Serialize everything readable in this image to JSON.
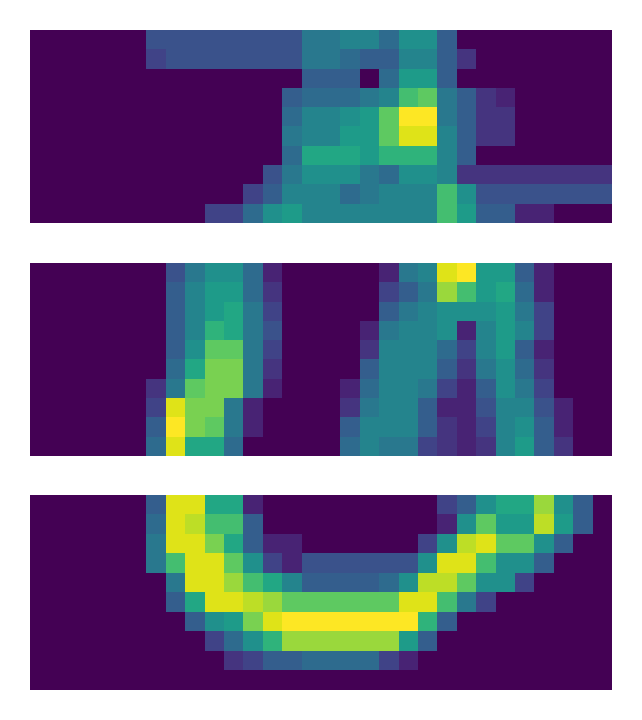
{
  "chart_data": [
    {
      "type": "heatmap",
      "color": "viridis",
      "color_range": [
        0,
        1
      ],
      "tick_labels": false,
      "cells": [
        [
          0,
          0,
          0,
          0,
          0,
          0,
          0.25,
          0.25,
          0.25,
          0.25,
          0.25,
          0.25,
          0.25,
          0.25,
          0.4,
          0.4,
          0.45,
          0.45,
          0.35,
          0.5,
          0.5,
          0.3,
          0,
          0,
          0,
          0,
          0,
          0,
          0,
          0
        ],
        [
          0,
          0,
          0,
          0,
          0,
          0,
          0.2,
          0.25,
          0.25,
          0.25,
          0.25,
          0.25,
          0.25,
          0.25,
          0.4,
          0.4,
          0.35,
          0.3,
          0.3,
          0.45,
          0.45,
          0.3,
          0.15,
          0,
          0,
          0,
          0,
          0,
          0,
          0
        ],
        [
          0,
          0,
          0,
          0,
          0,
          0,
          0,
          0,
          0,
          0,
          0,
          0,
          0,
          0,
          0.3,
          0.3,
          0.3,
          0,
          0.35,
          0.55,
          0.55,
          0.3,
          0,
          0,
          0,
          0,
          0,
          0,
          0,
          0
        ],
        [
          0,
          0,
          0,
          0,
          0,
          0,
          0,
          0,
          0,
          0,
          0,
          0,
          0,
          0.3,
          0.35,
          0.35,
          0.35,
          0.4,
          0.45,
          0.7,
          0.75,
          0.4,
          0.3,
          0.15,
          0.1,
          0,
          0,
          0,
          0,
          0
        ],
        [
          0,
          0,
          0,
          0,
          0,
          0,
          0,
          0,
          0,
          0,
          0,
          0,
          0,
          0.35,
          0.45,
          0.45,
          0.5,
          0.55,
          0.75,
          1,
          1,
          0.4,
          0.3,
          0.15,
          0.15,
          0,
          0,
          0,
          0,
          0
        ],
        [
          0,
          0,
          0,
          0,
          0,
          0,
          0,
          0,
          0,
          0,
          0,
          0,
          0,
          0.4,
          0.45,
          0.45,
          0.55,
          0.55,
          0.75,
          0.95,
          0.95,
          0.45,
          0.3,
          0.15,
          0.15,
          0,
          0,
          0,
          0,
          0
        ],
        [
          0,
          0,
          0,
          0,
          0,
          0,
          0,
          0,
          0,
          0,
          0,
          0,
          0,
          0.35,
          0.6,
          0.6,
          0.6,
          0.55,
          0.65,
          0.65,
          0.65,
          0.45,
          0.3,
          0,
          0,
          0,
          0,
          0,
          0,
          0
        ],
        [
          0,
          0,
          0,
          0,
          0,
          0,
          0,
          0,
          0,
          0,
          0,
          0,
          0.25,
          0.4,
          0.5,
          0.5,
          0.5,
          0.4,
          0.35,
          0.5,
          0.5,
          0.45,
          0.15,
          0.15,
          0.15,
          0.15,
          0.15,
          0.15,
          0.15,
          0.15
        ],
        [
          0,
          0,
          0,
          0,
          0,
          0,
          0,
          0,
          0,
          0,
          0,
          0.2,
          0.3,
          0.45,
          0.45,
          0.45,
          0.35,
          0.4,
          0.45,
          0.45,
          0.45,
          0.7,
          0.5,
          0.25,
          0.25,
          0.25,
          0.25,
          0.25,
          0.25,
          0.25
        ],
        [
          0,
          0,
          0,
          0,
          0,
          0,
          0,
          0,
          0,
          0.2,
          0.2,
          0.35,
          0.5,
          0.55,
          0.45,
          0.45,
          0.45,
          0.45,
          0.45,
          0.45,
          0.45,
          0.7,
          0.55,
          0.3,
          0.3,
          0.1,
          0.1,
          0,
          0,
          0
        ]
      ]
    },
    {
      "type": "heatmap",
      "color": "viridis",
      "color_range": [
        0,
        1
      ],
      "tick_labels": false,
      "cells": [
        [
          0,
          0,
          0,
          0,
          0,
          0,
          0,
          0.25,
          0.4,
          0.5,
          0.5,
          0.35,
          0.1,
          0,
          0,
          0,
          0,
          0,
          0.1,
          0.4,
          0.45,
          0.95,
          1,
          0.55,
          0.55,
          0.3,
          0.1,
          0,
          0,
          0
        ],
        [
          0,
          0,
          0,
          0,
          0,
          0,
          0,
          0.3,
          0.45,
          0.55,
          0.55,
          0.35,
          0.15,
          0,
          0,
          0,
          0,
          0,
          0.2,
          0.3,
          0.4,
          0.85,
          0.7,
          0.55,
          0.6,
          0.35,
          0.1,
          0,
          0,
          0
        ],
        [
          0,
          0,
          0,
          0,
          0,
          0,
          0,
          0.3,
          0.45,
          0.55,
          0.6,
          0.4,
          0.2,
          0,
          0,
          0,
          0,
          0,
          0.3,
          0.4,
          0.45,
          0.5,
          0.5,
          0.5,
          0.55,
          0.4,
          0.2,
          0,
          0,
          0
        ],
        [
          0,
          0,
          0,
          0,
          0,
          0,
          0,
          0.3,
          0.45,
          0.65,
          0.6,
          0.4,
          0.25,
          0,
          0,
          0,
          0,
          0.1,
          0.4,
          0.45,
          0.45,
          0.5,
          0.1,
          0.45,
          0.55,
          0.45,
          0.2,
          0,
          0,
          0
        ],
        [
          0,
          0,
          0,
          0,
          0,
          0,
          0,
          0.3,
          0.5,
          0.75,
          0.75,
          0.4,
          0.2,
          0,
          0,
          0,
          0,
          0.15,
          0.45,
          0.45,
          0.45,
          0.35,
          0.2,
          0.45,
          0.55,
          0.3,
          0.1,
          0,
          0,
          0
        ],
        [
          0,
          0,
          0,
          0,
          0,
          0,
          0,
          0.35,
          0.6,
          0.8,
          0.8,
          0.4,
          0.15,
          0,
          0,
          0,
          0,
          0.3,
          0.45,
          0.45,
          0.45,
          0.3,
          0.15,
          0.4,
          0.5,
          0.35,
          0.15,
          0,
          0,
          0
        ],
        [
          0,
          0,
          0,
          0,
          0,
          0,
          0.15,
          0.4,
          0.75,
          0.8,
          0.8,
          0.4,
          0.1,
          0,
          0,
          0,
          0.1,
          0.35,
          0.45,
          0.45,
          0.4,
          0.2,
          0.1,
          0.3,
          0.5,
          0.4,
          0.2,
          0,
          0,
          0
        ],
        [
          0,
          0,
          0,
          0,
          0,
          0,
          0.2,
          0.95,
          0.8,
          0.8,
          0.4,
          0.1,
          0,
          0,
          0,
          0,
          0.15,
          0.4,
          0.45,
          0.45,
          0.3,
          0.1,
          0.1,
          0.25,
          0.45,
          0.45,
          0.25,
          0.1,
          0,
          0
        ],
        [
          0,
          0,
          0,
          0,
          0,
          0,
          0.3,
          1,
          0.8,
          0.75,
          0.4,
          0.1,
          0,
          0,
          0,
          0,
          0.3,
          0.45,
          0.45,
          0.45,
          0.3,
          0.15,
          0.1,
          0.2,
          0.45,
          0.5,
          0.3,
          0.1,
          0,
          0
        ],
        [
          0,
          0,
          0,
          0,
          0,
          0,
          0.35,
          0.95,
          0.6,
          0.6,
          0.35,
          0,
          0,
          0,
          0,
          0,
          0.35,
          0.45,
          0.4,
          0.4,
          0.2,
          0.15,
          0.1,
          0.15,
          0.45,
          0.55,
          0.3,
          0.15,
          0,
          0
        ]
      ]
    },
    {
      "type": "heatmap",
      "color": "viridis",
      "color_range": [
        0,
        1
      ],
      "tick_labels": false,
      "cells": [
        [
          0,
          0,
          0,
          0,
          0,
          0,
          0.3,
          0.95,
          0.95,
          0.6,
          0.6,
          0.1,
          0,
          0,
          0,
          0,
          0,
          0,
          0,
          0,
          0,
          0.2,
          0.3,
          0.5,
          0.6,
          0.6,
          0.85,
          0.5,
          0.3,
          0
        ],
        [
          0,
          0,
          0,
          0,
          0,
          0,
          0.35,
          0.95,
          0.9,
          0.7,
          0.7,
          0.3,
          0,
          0,
          0,
          0,
          0,
          0,
          0,
          0,
          0,
          0.1,
          0.5,
          0.75,
          0.55,
          0.55,
          0.9,
          0.55,
          0.3,
          0
        ],
        [
          0,
          0,
          0,
          0,
          0,
          0,
          0.4,
          0.95,
          0.95,
          0.8,
          0.6,
          0.3,
          0.1,
          0.1,
          0,
          0,
          0,
          0,
          0,
          0,
          0.2,
          0.5,
          0.9,
          0.95,
          0.75,
          0.75,
          0.5,
          0.3,
          0,
          0
        ],
        [
          0,
          0,
          0,
          0,
          0,
          0,
          0.4,
          0.7,
          0.95,
          0.95,
          0.75,
          0.5,
          0.2,
          0.1,
          0.25,
          0.25,
          0.25,
          0.25,
          0.25,
          0.25,
          0.5,
          0.95,
          0.95,
          0.7,
          0.5,
          0.5,
          0.3,
          0,
          0,
          0
        ],
        [
          0,
          0,
          0,
          0,
          0,
          0,
          0,
          0.4,
          0.95,
          0.95,
          0.85,
          0.7,
          0.6,
          0.45,
          0.3,
          0.3,
          0.3,
          0.3,
          0.35,
          0.5,
          0.9,
          0.9,
          0.75,
          0.5,
          0.5,
          0.2,
          0,
          0,
          0,
          0
        ],
        [
          0,
          0,
          0,
          0,
          0,
          0,
          0,
          0.3,
          0.6,
          0.95,
          0.95,
          0.9,
          0.85,
          0.75,
          0.75,
          0.75,
          0.75,
          0.75,
          0.75,
          0.95,
          0.95,
          0.7,
          0.4,
          0.2,
          0,
          0,
          0,
          0,
          0,
          0
        ],
        [
          0,
          0,
          0,
          0,
          0,
          0,
          0,
          0,
          0.3,
          0.5,
          0.55,
          0.8,
          0.95,
          1,
          1,
          1,
          1,
          1,
          1,
          1,
          0.65,
          0.3,
          0,
          0,
          0,
          0,
          0,
          0,
          0,
          0
        ],
        [
          0,
          0,
          0,
          0,
          0,
          0,
          0,
          0,
          0,
          0.2,
          0.35,
          0.5,
          0.65,
          0.85,
          0.85,
          0.85,
          0.85,
          0.85,
          0.85,
          0.55,
          0.3,
          0,
          0,
          0,
          0,
          0,
          0,
          0,
          0,
          0
        ],
        [
          0,
          0,
          0,
          0,
          0,
          0,
          0,
          0,
          0,
          0,
          0.15,
          0.2,
          0.3,
          0.3,
          0.35,
          0.35,
          0.35,
          0.35,
          0.2,
          0.1,
          0,
          0,
          0,
          0,
          0,
          0,
          0,
          0,
          0,
          0
        ],
        [
          0,
          0,
          0,
          0,
          0,
          0,
          0,
          0,
          0,
          0,
          0,
          0,
          0,
          0,
          0,
          0,
          0,
          0,
          0,
          0,
          0,
          0,
          0,
          0,
          0,
          0,
          0,
          0,
          0,
          0
        ]
      ]
    }
  ]
}
